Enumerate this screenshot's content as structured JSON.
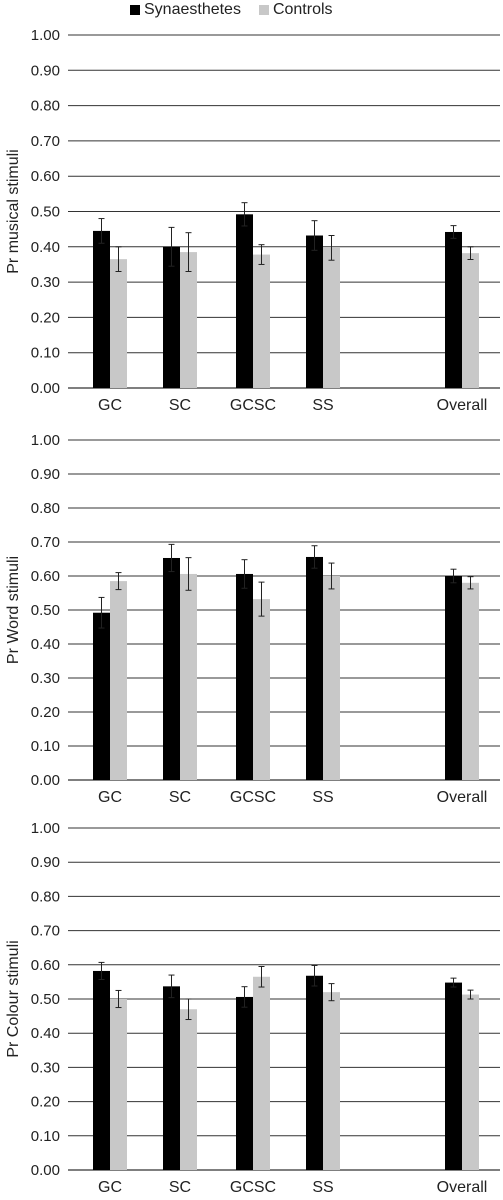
{
  "legend": {
    "synaesthetes_label": "Synaesthetes",
    "controls_label": "Controls"
  },
  "colors": {
    "synaesthetes": "#000000",
    "controls": "#c8c8c8",
    "grid": "#333333",
    "error_bar": "#222222"
  },
  "chart_data": [
    {
      "type": "bar",
      "ylabel": "Pr musical stimuli",
      "ylim": [
        0,
        1
      ],
      "yticks": [
        "0.00",
        "0.10",
        "0.20",
        "0.30",
        "0.40",
        "0.50",
        "0.60",
        "0.70",
        "0.80",
        "0.90",
        "1.00"
      ],
      "grid": true,
      "legend_position": "top",
      "categories": [
        "GC",
        "SC",
        "GCSC",
        "SS",
        "Overall"
      ],
      "series": [
        {
          "name": "Synaesthetes",
          "values": [
            0.445,
            0.4,
            0.492,
            0.432,
            0.442
          ],
          "errors": [
            0.035,
            0.055,
            0.033,
            0.042,
            0.018
          ]
        },
        {
          "name": "Controls",
          "values": [
            0.365,
            0.385,
            0.378,
            0.397,
            0.382
          ],
          "errors": [
            0.035,
            0.055,
            0.028,
            0.035,
            0.018
          ]
        }
      ]
    },
    {
      "type": "bar",
      "ylabel": "Pr Word stimuli",
      "ylim": [
        0,
        1
      ],
      "yticks": [
        "0.00",
        "0.10",
        "0.20",
        "0.30",
        "0.40",
        "0.50",
        "0.60",
        "0.70",
        "0.80",
        "0.90",
        "1.00"
      ],
      "grid": true,
      "categories": [
        "GC",
        "SC",
        "GCSC",
        "SS",
        "Overall"
      ],
      "series": [
        {
          "name": "Synaesthetes",
          "values": [
            0.492,
            0.653,
            0.606,
            0.656,
            0.6
          ],
          "errors": [
            0.045,
            0.04,
            0.042,
            0.033,
            0.02
          ]
        },
        {
          "name": "Controls",
          "values": [
            0.585,
            0.606,
            0.532,
            0.6,
            0.58
          ],
          "errors": [
            0.025,
            0.048,
            0.05,
            0.038,
            0.018
          ]
        }
      ]
    },
    {
      "type": "bar",
      "ylabel": "Pr Colour stimuli",
      "ylim": [
        0,
        1
      ],
      "yticks": [
        "0.00",
        "0.10",
        "0.20",
        "0.30",
        "0.40",
        "0.50",
        "0.60",
        "0.70",
        "0.80",
        "0.90",
        "1.00"
      ],
      "grid": true,
      "categories": [
        "GC",
        "SC",
        "GCSC",
        "SS",
        "Overall"
      ],
      "series": [
        {
          "name": "Synaesthetes",
          "values": [
            0.582,
            0.537,
            0.506,
            0.568,
            0.548
          ],
          "errors": [
            0.025,
            0.033,
            0.03,
            0.03,
            0.013
          ]
        },
        {
          "name": "Controls",
          "values": [
            0.5,
            0.47,
            0.565,
            0.52,
            0.513
          ],
          "errors": [
            0.025,
            0.03,
            0.03,
            0.025,
            0.013
          ]
        }
      ]
    }
  ]
}
